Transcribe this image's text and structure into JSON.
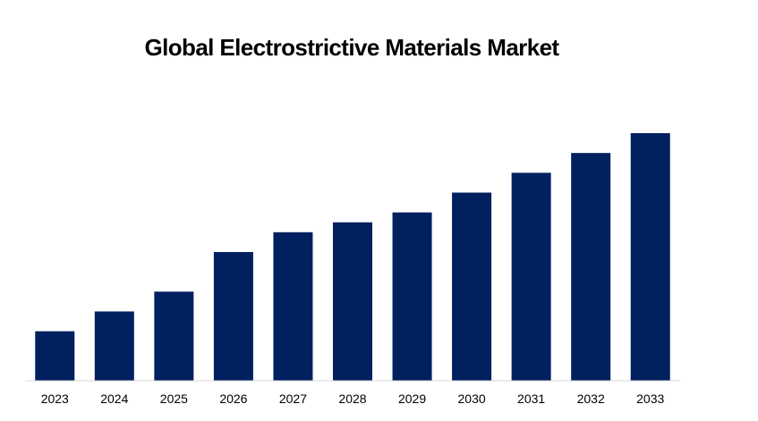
{
  "chart_data": {
    "type": "bar",
    "title": "Global Electrostrictive Materials Market",
    "xlabel": "",
    "ylabel": "",
    "categories": [
      "2023",
      "2024",
      "2025",
      "2026",
      "2027",
      "2028",
      "2029",
      "2030",
      "2031",
      "2032",
      "2033"
    ],
    "values": [
      1.0,
      1.4,
      1.8,
      2.6,
      3.0,
      3.2,
      3.4,
      3.8,
      4.2,
      4.6,
      5.0
    ],
    "ylim": [
      0,
      5.0
    ],
    "grid": false,
    "legend": "none",
    "bar_color": "#002060",
    "axis_color": "#d9d9d9"
  }
}
